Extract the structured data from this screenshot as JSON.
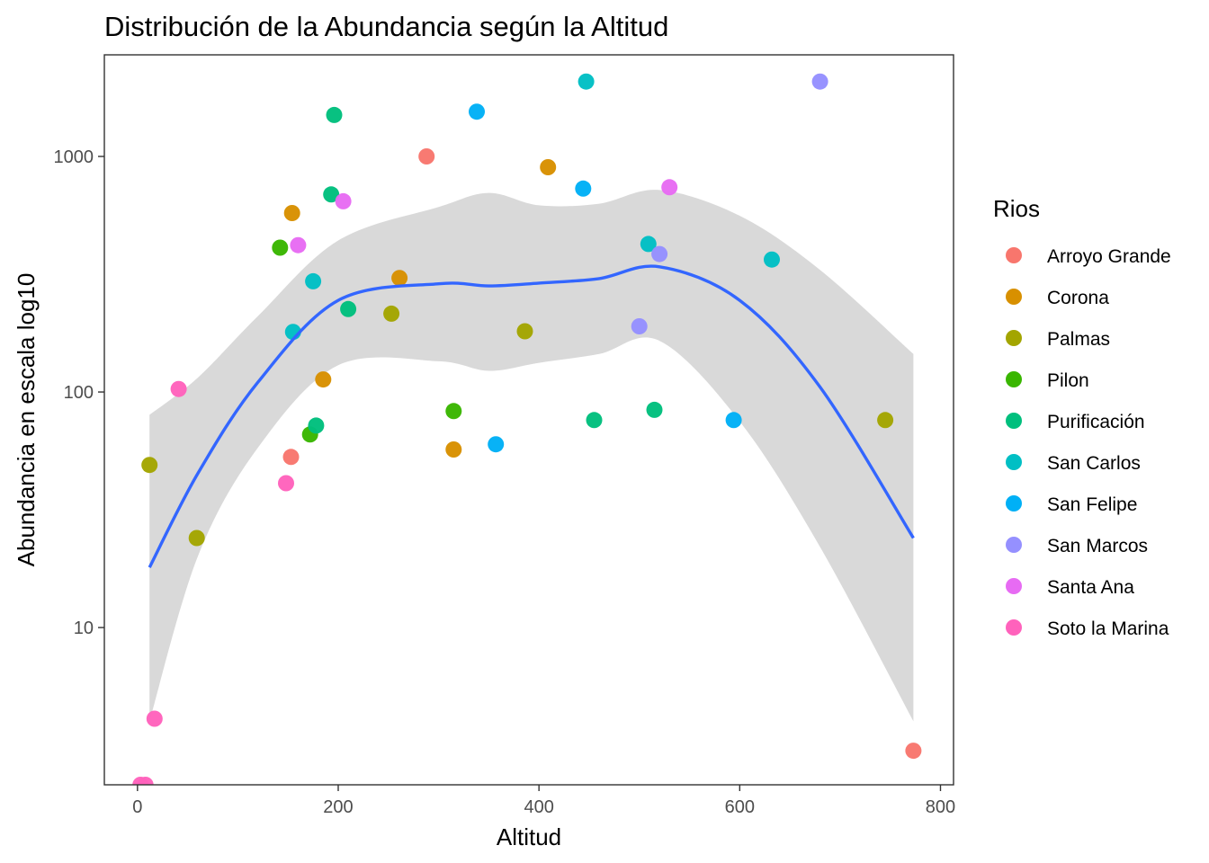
{
  "chart_data": {
    "type": "scatter",
    "title": "Distribución de la Abundancia según la Altitud",
    "xlabel": "Altitud",
    "ylabel": "Abundancia en escala log10",
    "xlim": [
      -33,
      813
    ],
    "ylim": [
      2.15,
      2700
    ],
    "y_scale": "log10",
    "x_ticks": [
      0,
      200,
      400,
      600,
      800
    ],
    "y_ticks": [
      10,
      100,
      1000
    ],
    "x_tick_labels": [
      "0",
      "200",
      "400",
      "600",
      "800"
    ],
    "y_tick_labels": [
      "10",
      "100",
      "1000"
    ],
    "grid": false,
    "legend": {
      "title": "Rios",
      "position": "right",
      "entries": [
        {
          "name": "Arroyo Grande",
          "color": "#F8766D"
        },
        {
          "name": "Corona",
          "color": "#D89000"
        },
        {
          "name": "Palmas",
          "color": "#A3A500"
        },
        {
          "name": "Pilon",
          "color": "#39B600"
        },
        {
          "name": "Purificación",
          "color": "#00BF7D"
        },
        {
          "name": "San Carlos",
          "color": "#00BFC4"
        },
        {
          "name": "San Felipe",
          "color": "#00B0F6"
        },
        {
          "name": "San Marcos",
          "color": "#9590FF"
        },
        {
          "name": "Santa Ana",
          "color": "#E76BF3"
        },
        {
          "name": "Soto la Marina",
          "color": "#FF62BC"
        }
      ]
    },
    "series": [
      {
        "name": "Arroyo Grande",
        "points": [
          [
            288,
            1000
          ],
          [
            153,
            53
          ],
          [
            773,
            3
          ]
        ]
      },
      {
        "name": "Corona",
        "points": [
          [
            154,
            575
          ],
          [
            185,
            113
          ],
          [
            261,
            305
          ],
          [
            315,
            57
          ],
          [
            409,
            900
          ]
        ]
      },
      {
        "name": "Palmas",
        "points": [
          [
            12,
            49
          ],
          [
            59,
            24
          ],
          [
            253,
            215
          ],
          [
            386,
            181
          ],
          [
            745,
            76
          ]
        ]
      },
      {
        "name": "Pilon",
        "points": [
          [
            142,
            410
          ],
          [
            172,
            66
          ],
          [
            315,
            83
          ]
        ]
      },
      {
        "name": "Purificación",
        "points": [
          [
            196,
            1500
          ],
          [
            193,
            690
          ],
          [
            178,
            72
          ],
          [
            210,
            225
          ],
          [
            455,
            76
          ],
          [
            515,
            84
          ]
        ]
      },
      {
        "name": "San Carlos",
        "points": [
          [
            155,
            180
          ],
          [
            175,
            295
          ],
          [
            447,
            2080
          ],
          [
            509,
            425
          ],
          [
            632,
            365
          ]
        ]
      },
      {
        "name": "San Felipe",
        "points": [
          [
            338,
            1550
          ],
          [
            357,
            60
          ],
          [
            444,
            730
          ],
          [
            594,
            76
          ]
        ]
      },
      {
        "name": "San Marcos",
        "points": [
          [
            500,
            190
          ],
          [
            520,
            385
          ],
          [
            680,
            2080
          ]
        ]
      },
      {
        "name": "Santa Ana",
        "points": [
          [
            160,
            420
          ],
          [
            205,
            645
          ],
          [
            530,
            740
          ]
        ]
      },
      {
        "name": "Soto la Marina",
        "points": [
          [
            41,
            103
          ],
          [
            148,
            41
          ],
          [
            17,
            4.1
          ],
          [
            3,
            2.15
          ],
          [
            8,
            2.15
          ]
        ]
      }
    ],
    "smooth": {
      "method": "loess",
      "color": "#3366FF",
      "band_color": "#D9D9D9",
      "x": [
        12,
        60,
        120,
        200,
        300,
        350,
        400,
        460,
        520,
        600,
        680,
        773
      ],
      "y": [
        18,
        45,
        110,
        245,
        288,
        282,
        290,
        303,
        340,
        245,
        105,
        24
      ],
      "lower": [
        4,
        20,
        58,
        130,
        135,
        123,
        133,
        145,
        165,
        75,
        22,
        4
      ],
      "upper": [
        80,
        115,
        210,
        440,
        610,
        700,
        620,
        630,
        720,
        560,
        330,
        145
      ]
    }
  }
}
